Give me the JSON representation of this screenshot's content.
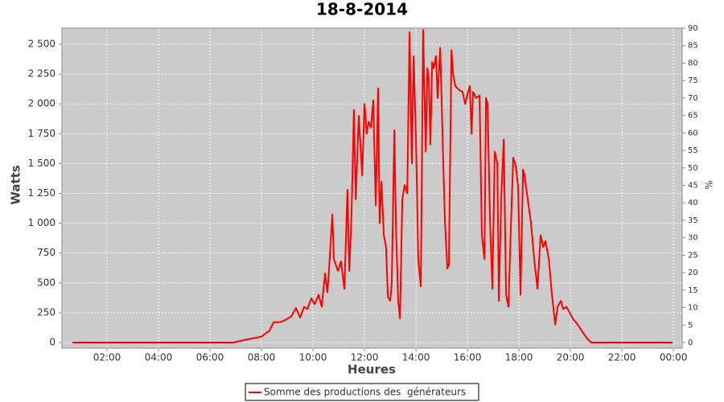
{
  "chart_data": {
    "type": "line",
    "title": "18-8-2014",
    "xlabel": "Heures",
    "ylabel": "Watts",
    "y2label": "%",
    "x": [
      0.66,
      6.91,
      7.53,
      8.0,
      8.31,
      8.47,
      8.72,
      8.94,
      9.16,
      9.34,
      9.5,
      9.66,
      9.78,
      9.94,
      10.06,
      10.22,
      10.34,
      10.47,
      10.56,
      10.63,
      10.75,
      10.81,
      10.97,
      11.09,
      11.22,
      11.34,
      11.41,
      11.5,
      11.59,
      11.66,
      11.78,
      11.91,
      12.0,
      12.09,
      12.16,
      12.25,
      12.34,
      12.44,
      12.53,
      12.59,
      12.66,
      12.75,
      12.84,
      12.91,
      13.0,
      13.06,
      13.16,
      13.22,
      13.31,
      13.38,
      13.47,
      13.56,
      13.66,
      13.75,
      13.84,
      13.91,
      14.0,
      14.09,
      14.19,
      14.28,
      14.38,
      14.44,
      14.5,
      14.56,
      14.63,
      14.69,
      14.78,
      14.84,
      14.94,
      15.0,
      15.06,
      15.13,
      15.22,
      15.28,
      15.38,
      15.44,
      15.53,
      15.66,
      15.81,
      15.91,
      16.0,
      16.09,
      16.16,
      16.22,
      16.34,
      16.47,
      16.56,
      16.66,
      16.72,
      16.78,
      16.88,
      16.97,
      17.06,
      17.16,
      17.22,
      17.31,
      17.41,
      17.5,
      17.59,
      17.69,
      17.78,
      17.88,
      17.97,
      18.06,
      18.16,
      18.22,
      18.34,
      18.47,
      18.59,
      18.72,
      18.84,
      18.94,
      19.03,
      19.16,
      19.28,
      19.41,
      19.5,
      19.63,
      19.72,
      19.84,
      19.97,
      20.09,
      20.28,
      20.5,
      20.66,
      20.81,
      23.97
    ],
    "series": [
      {
        "name": "Somme des productions des  générateurs",
        "color": "#ff0000",
        "values": [
          0,
          0,
          30,
          50,
          100,
          170,
          170,
          190,
          220,
          290,
          210,
          300,
          280,
          370,
          320,
          400,
          300,
          580,
          420,
          630,
          1075,
          700,
          600,
          680,
          450,
          1280,
          600,
          1100,
          1950,
          1200,
          1900,
          1400,
          2000,
          1750,
          1850,
          1800,
          2030,
          1150,
          2130,
          1000,
          1350,
          900,
          800,
          380,
          350,
          500,
          1780,
          1000,
          350,
          200,
          1200,
          1320,
          1250,
          2600,
          1500,
          2400,
          1700,
          700,
          470,
          2620,
          1600,
          2300,
          2200,
          1660,
          2350,
          2300,
          2400,
          2050,
          2470,
          2000,
          1500,
          1000,
          620,
          650,
          2450,
          2250,
          2150,
          2120,
          2100,
          2000,
          2080,
          2150,
          1750,
          2100,
          2050,
          2070,
          900,
          700,
          2050,
          2000,
          1000,
          450,
          1600,
          1500,
          350,
          1200,
          1700,
          400,
          300,
          1000,
          1550,
          1480,
          1300,
          400,
          1450,
          1400,
          1200,
          1000,
          700,
          450,
          900,
          800,
          850,
          700,
          400,
          150,
          300,
          350,
          280,
          300,
          250,
          200,
          150,
          80,
          30,
          0,
          0
        ]
      }
    ],
    "xlim": [
      0.25,
      24.34
    ],
    "xticks": [
      {
        "value": 2,
        "label": "02:00"
      },
      {
        "value": 4,
        "label": "04:00"
      },
      {
        "value": 6,
        "label": "06:00"
      },
      {
        "value": 8,
        "label": "08:00"
      },
      {
        "value": 10,
        "label": "10:00"
      },
      {
        "value": 12,
        "label": "12:00"
      },
      {
        "value": 14,
        "label": "14:00"
      },
      {
        "value": 16,
        "label": "16:00"
      },
      {
        "value": 18,
        "label": "18:00"
      },
      {
        "value": 20,
        "label": "20:00"
      },
      {
        "value": 22,
        "label": "22:00"
      },
      {
        "value": 24,
        "label": "00:00"
      }
    ],
    "ylim": [
      -47,
      2635
    ],
    "yticks": [
      0,
      250,
      500,
      750,
      {
        "value": 1000,
        "label": "1 000"
      },
      {
        "value": 1250,
        "label": "1 250"
      },
      {
        "value": 1500,
        "label": "1 500"
      },
      {
        "value": 1750,
        "label": "1 750"
      },
      {
        "value": 2000,
        "label": "2 000"
      },
      {
        "value": 2250,
        "label": "2 250"
      },
      {
        "value": 2500,
        "label": "2 500"
      }
    ],
    "y2lim": [
      -1.6,
      90
    ],
    "y2ticks": [
      0,
      5,
      10,
      15,
      20,
      25,
      30,
      35,
      40,
      45,
      50,
      55,
      60,
      65,
      70,
      75,
      80,
      85,
      90
    ],
    "grid": true
  }
}
